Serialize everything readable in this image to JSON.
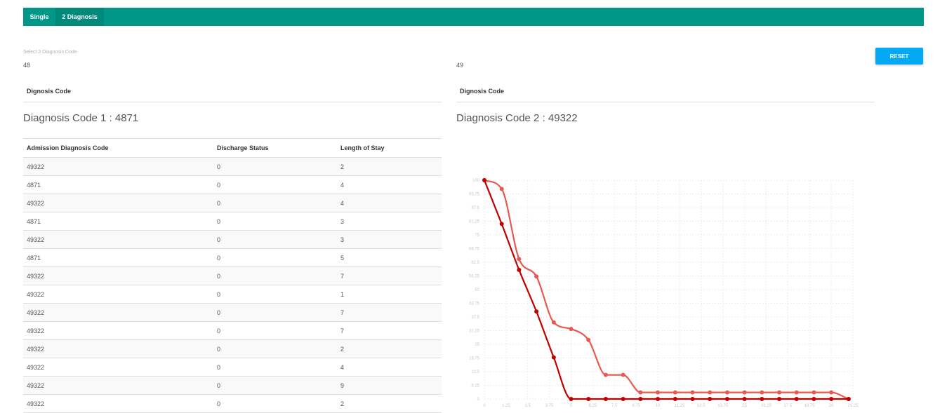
{
  "tabs": [
    {
      "label": "Single",
      "active": false
    },
    {
      "label": "2 Diagnosis",
      "active": true
    }
  ],
  "selection": {
    "label": "Select 2 Diagnosis Code",
    "code1_value": "48",
    "code2_value": "49",
    "reset_label": "RESET"
  },
  "left_panel": {
    "header": "Dignosis Code",
    "title": "Diagnosis Code 1 : 4871"
  },
  "right_panel": {
    "header": "Dignosis Code",
    "title": "Diagnosis Code 2 : 49322"
  },
  "table": {
    "columns": [
      "Admission Diagnosis Code",
      "Discharge Status",
      "Length of Stay"
    ],
    "rows": [
      [
        "49322",
        "0",
        "2"
      ],
      [
        "4871",
        "0",
        "4"
      ],
      [
        "49322",
        "0",
        "4"
      ],
      [
        "4871",
        "0",
        "3"
      ],
      [
        "49322",
        "0",
        "3"
      ],
      [
        "4871",
        "0",
        "5"
      ],
      [
        "49322",
        "0",
        "7"
      ],
      [
        "49322",
        "0",
        "1"
      ],
      [
        "49322",
        "0",
        "7"
      ],
      [
        "49322",
        "0",
        "7"
      ],
      [
        "49322",
        "0",
        "2"
      ],
      [
        "49322",
        "0",
        "4"
      ],
      [
        "49322",
        "0",
        "9"
      ],
      [
        "49322",
        "0",
        "2"
      ]
    ]
  },
  "chart_data": {
    "type": "line",
    "xlim": [
      0,
      21.25
    ],
    "ylim": [
      0,
      100
    ],
    "x_ticks": [
      "0",
      "1.25",
      "2.5",
      "3.75",
      "5",
      "6.25",
      "7.5",
      "8.75",
      "10",
      "11.25",
      "12.5",
      "13.75",
      "15",
      "16.25",
      "17.5",
      "18.75",
      "20",
      "21.25"
    ],
    "y_ticks": [
      "0",
      "6.25",
      "12.5",
      "18.75",
      "25",
      "31.25",
      "37.5",
      "43.75",
      "50",
      "56.25",
      "62.5",
      "68.75",
      "75",
      "81.25",
      "87.5",
      "93.75",
      "100"
    ],
    "grid": true,
    "series": [
      {
        "color": "#e8594f",
        "points": [
          [
            0,
            100
          ],
          [
            1,
            96
          ],
          [
            2,
            64
          ],
          [
            3,
            56
          ],
          [
            4,
            35
          ],
          [
            5,
            32
          ],
          [
            6,
            27
          ],
          [
            7,
            11
          ],
          [
            8,
            11
          ],
          [
            9,
            3
          ],
          [
            10,
            3
          ],
          [
            11,
            3
          ],
          [
            12,
            3
          ],
          [
            13,
            3
          ],
          [
            14,
            3
          ],
          [
            15,
            3
          ],
          [
            16,
            3
          ],
          [
            17,
            3
          ],
          [
            18,
            3
          ],
          [
            19,
            3
          ],
          [
            20,
            3
          ],
          [
            21,
            0
          ]
        ]
      },
      {
        "color": "#c00000",
        "points": [
          [
            0,
            100
          ],
          [
            1,
            80
          ],
          [
            2,
            59
          ],
          [
            3,
            40
          ],
          [
            4,
            19
          ],
          [
            5,
            0
          ],
          [
            6,
            0
          ],
          [
            7,
            0
          ],
          [
            8,
            0
          ],
          [
            9,
            0
          ],
          [
            10,
            0
          ],
          [
            11,
            0
          ],
          [
            12,
            0
          ],
          [
            13,
            0
          ],
          [
            14,
            0
          ],
          [
            15,
            0
          ],
          [
            16,
            0
          ],
          [
            17,
            0
          ],
          [
            18,
            0
          ],
          [
            19,
            0
          ],
          [
            20,
            0
          ],
          [
            21,
            0
          ]
        ]
      }
    ]
  }
}
